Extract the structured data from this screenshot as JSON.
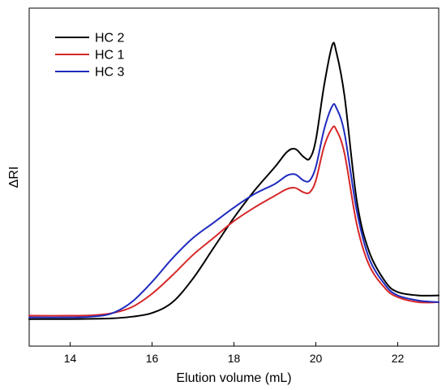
{
  "chart_data": {
    "type": "line",
    "title": "",
    "xlabel": "Elution volume (mL)",
    "ylabel": "ΔRI",
    "xlim": [
      13,
      23
    ],
    "ylim": [
      0,
      1
    ],
    "x_ticks": [
      14,
      16,
      18,
      20,
      22
    ],
    "y_ticks": [],
    "grid": false,
    "legend_position": "top-left",
    "series": [
      {
        "name": "HC 2",
        "color": "#000000",
        "points": [
          [
            13.0,
            0.08
          ],
          [
            14.0,
            0.08
          ],
          [
            15.0,
            0.082
          ],
          [
            15.5,
            0.087
          ],
          [
            16.0,
            0.098
          ],
          [
            16.5,
            0.13
          ],
          [
            17.0,
            0.2
          ],
          [
            17.5,
            0.29
          ],
          [
            18.0,
            0.38
          ],
          [
            18.5,
            0.46
          ],
          [
            19.0,
            0.53
          ],
          [
            19.3,
            0.575
          ],
          [
            19.5,
            0.583
          ],
          [
            19.7,
            0.56
          ],
          [
            19.85,
            0.555
          ],
          [
            20.0,
            0.61
          ],
          [
            20.2,
            0.77
          ],
          [
            20.4,
            0.89
          ],
          [
            20.5,
            0.87
          ],
          [
            20.7,
            0.74
          ],
          [
            21.0,
            0.43
          ],
          [
            21.3,
            0.28
          ],
          [
            21.7,
            0.19
          ],
          [
            22.0,
            0.16
          ],
          [
            22.5,
            0.15
          ],
          [
            23.0,
            0.15
          ]
        ]
      },
      {
        "name": "HC 1",
        "color": "#d62728",
        "points": [
          [
            13.0,
            0.09
          ],
          [
            14.0,
            0.09
          ],
          [
            14.5,
            0.091
          ],
          [
            15.0,
            0.097
          ],
          [
            15.5,
            0.115
          ],
          [
            16.0,
            0.155
          ],
          [
            16.5,
            0.21
          ],
          [
            17.0,
            0.27
          ],
          [
            17.5,
            0.32
          ],
          [
            18.0,
            0.37
          ],
          [
            18.5,
            0.41
          ],
          [
            19.0,
            0.445
          ],
          [
            19.3,
            0.465
          ],
          [
            19.5,
            0.468
          ],
          [
            19.7,
            0.455
          ],
          [
            19.85,
            0.455
          ],
          [
            20.0,
            0.49
          ],
          [
            20.2,
            0.59
          ],
          [
            20.4,
            0.645
          ],
          [
            20.5,
            0.64
          ],
          [
            20.7,
            0.57
          ],
          [
            21.0,
            0.36
          ],
          [
            21.3,
            0.24
          ],
          [
            21.7,
            0.17
          ],
          [
            22.0,
            0.145
          ],
          [
            22.5,
            0.13
          ],
          [
            23.0,
            0.13
          ]
        ]
      },
      {
        "name": "HC 3",
        "color": "#1f2bbf",
        "points": [
          [
            13.0,
            0.085
          ],
          [
            14.0,
            0.085
          ],
          [
            14.5,
            0.087
          ],
          [
            15.0,
            0.096
          ],
          [
            15.5,
            0.13
          ],
          [
            16.0,
            0.19
          ],
          [
            16.5,
            0.26
          ],
          [
            17.0,
            0.32
          ],
          [
            17.5,
            0.365
          ],
          [
            18.0,
            0.41
          ],
          [
            18.5,
            0.45
          ],
          [
            19.0,
            0.48
          ],
          [
            19.3,
            0.505
          ],
          [
            19.5,
            0.508
          ],
          [
            19.7,
            0.49
          ],
          [
            19.85,
            0.49
          ],
          [
            20.0,
            0.53
          ],
          [
            20.2,
            0.64
          ],
          [
            20.4,
            0.71
          ],
          [
            20.5,
            0.705
          ],
          [
            20.7,
            0.63
          ],
          [
            21.0,
            0.4
          ],
          [
            21.3,
            0.26
          ],
          [
            21.7,
            0.18
          ],
          [
            22.0,
            0.15
          ],
          [
            22.5,
            0.135
          ],
          [
            23.0,
            0.13
          ]
        ]
      }
    ]
  }
}
